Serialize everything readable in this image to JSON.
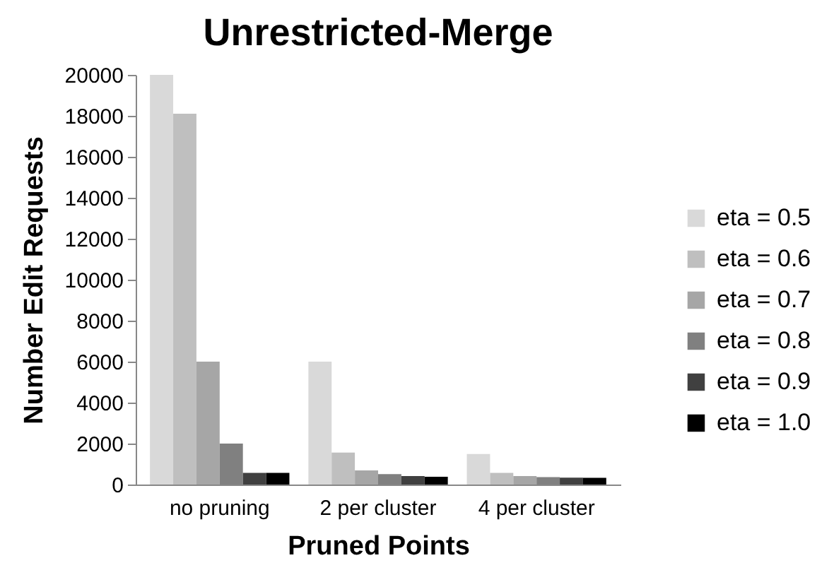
{
  "chart_data": {
    "type": "bar",
    "title": "Unrestricted-Merge",
    "xlabel": "Pruned Points",
    "ylabel": "Number Edit Requests",
    "categories": [
      "no pruning",
      "2 per cluster",
      "4 per cluster"
    ],
    "series": [
      {
        "name": "eta = 0.5",
        "color": "#d9d9d9",
        "values": [
          20000,
          6000,
          1490
        ]
      },
      {
        "name": "eta = 0.6",
        "color": "#bfbfbf",
        "values": [
          18100,
          1560,
          570
        ]
      },
      {
        "name": "eta = 0.7",
        "color": "#a6a6a6",
        "values": [
          6000,
          690,
          410
        ]
      },
      {
        "name": "eta = 0.8",
        "color": "#808080",
        "values": [
          2000,
          510,
          360
        ]
      },
      {
        "name": "eta = 0.9",
        "color": "#404040",
        "values": [
          570,
          410,
          340
        ]
      },
      {
        "name": "eta = 1.0",
        "color": "#000000",
        "values": [
          570,
          380,
          330
        ]
      }
    ],
    "ylim": [
      0,
      20000
    ],
    "yticks": [
      0,
      2000,
      4000,
      6000,
      8000,
      10000,
      12000,
      14000,
      16000,
      18000,
      20000
    ],
    "legend": "right"
  }
}
